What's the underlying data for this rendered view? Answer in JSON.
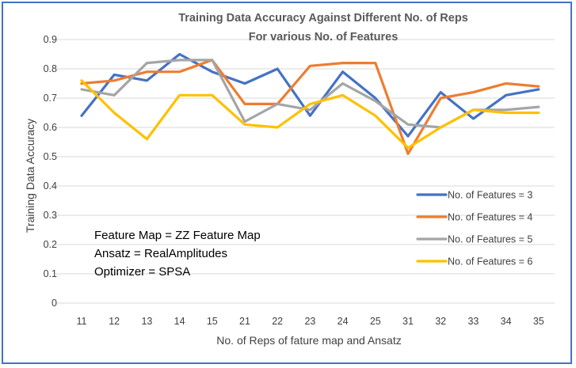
{
  "chart_data": {
    "type": "line",
    "title": [
      "Training Data Accuracy Against Different No. of Reps",
      "For various No. of Features"
    ],
    "xlabel": "No. of Reps of fature map and Ansatz",
    "ylabel": "Training Data Accuracy",
    "categories": [
      "11",
      "12",
      "13",
      "14",
      "15",
      "21",
      "22",
      "23",
      "24",
      "25",
      "31",
      "32",
      "33",
      "34",
      "35"
    ],
    "yticks": [
      "0",
      "0.1",
      "0.2",
      "0.3",
      "0.4",
      "0.5",
      "0.6",
      "0.7",
      "0.8",
      "0.9"
    ],
    "ylim": [
      0,
      0.9
    ],
    "grid": true,
    "legend_position": "right",
    "series": [
      {
        "name": "No. of Features = 3",
        "color": "#4472c4",
        "values": [
          0.64,
          0.78,
          0.76,
          0.85,
          0.79,
          0.75,
          0.8,
          0.64,
          0.79,
          0.7,
          0.57,
          0.72,
          0.63,
          0.71,
          0.73
        ]
      },
      {
        "name": "No. of Features = 4",
        "color": "#ed7d31",
        "values": [
          0.75,
          0.76,
          0.79,
          0.79,
          0.83,
          0.68,
          0.68,
          0.81,
          0.82,
          0.82,
          0.51,
          0.7,
          0.72,
          0.75,
          0.74
        ]
      },
      {
        "name": "No. of Features = 5",
        "color": "#a5a5a5",
        "values": [
          0.73,
          0.71,
          0.82,
          0.83,
          0.83,
          0.62,
          0.68,
          0.66,
          0.75,
          0.69,
          0.61,
          0.6,
          0.66,
          0.66,
          0.67
        ]
      },
      {
        "name": "No. of Features = 6",
        "color": "#ffc000",
        "values": [
          0.76,
          0.65,
          0.56,
          0.71,
          0.71,
          0.61,
          0.6,
          0.68,
          0.71,
          0.64,
          0.53,
          0.6,
          0.66,
          0.65,
          0.65
        ]
      }
    ],
    "annotations": [
      "Feature Map = ZZ Feature Map",
      "Ansatz = RealAmplitudes",
      "Optimizer = SPSA"
    ]
  }
}
